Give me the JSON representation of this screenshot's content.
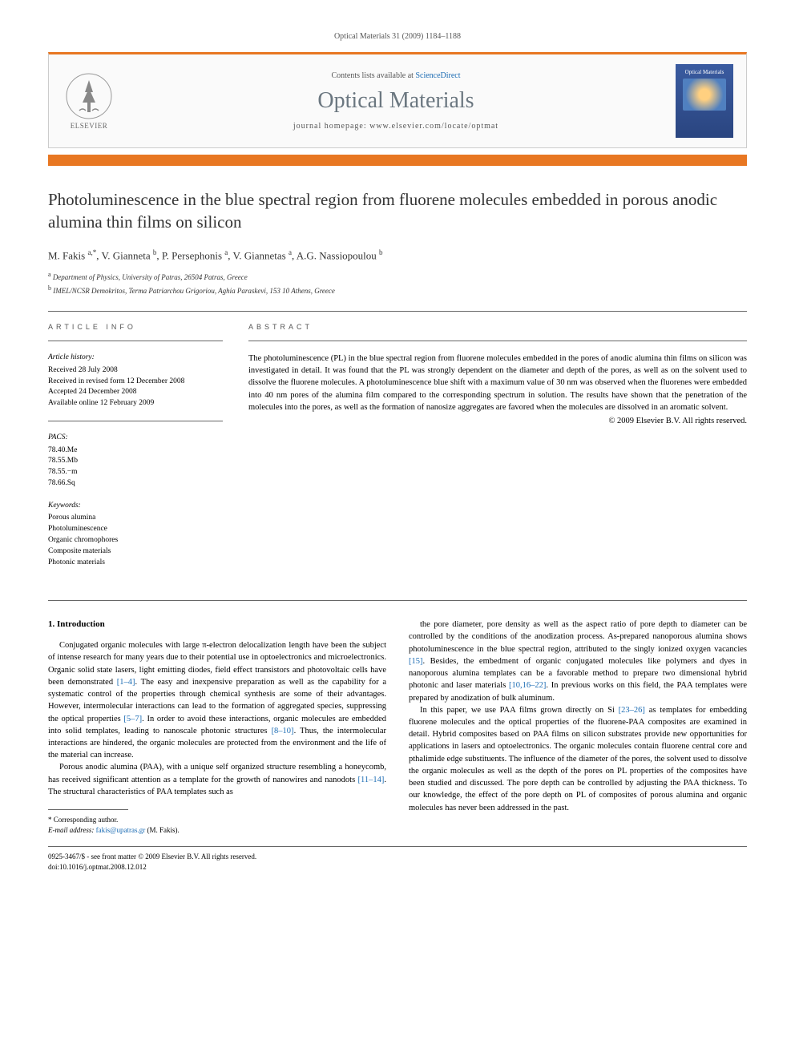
{
  "journal_ref": "Optical Materials 31 (2009) 1184–1188",
  "header": {
    "contents_prefix": "Contents lists available at ",
    "contents_link": "ScienceDirect",
    "journal_title": "Optical Materials",
    "homepage_prefix": "journal homepage: ",
    "homepage_url": "www.elsevier.com/locate/optmat",
    "elsevier_name": "ELSEVIER",
    "cover_title": "Optical Materials"
  },
  "title": "Photoluminescence in the blue spectral region from fluorene molecules embedded in porous anodic alumina thin films on silicon",
  "authors_html": "M. Fakis <sup>a,*</sup>, V. Gianneta <sup>b</sup>, P. Persephonis <sup>a</sup>, V. Giannetas <sup>a</sup>, A.G. Nassiopoulou <sup>b</sup>",
  "affiliations": [
    {
      "sup": "a",
      "text": "Department of Physics, University of Patras, 26504 Patras, Greece"
    },
    {
      "sup": "b",
      "text": "IMEL/NCSR Demokritos, Terma Patriarchou Grigoriou, Aghia Paraskevi, 153 10 Athens, Greece"
    }
  ],
  "article_info": {
    "head": "ARTICLE INFO",
    "history_label": "Article history:",
    "history": [
      "Received 28 July 2008",
      "Received in revised form 12 December 2008",
      "Accepted 24 December 2008",
      "Available online 12 February 2009"
    ],
    "pacs_label": "PACS:",
    "pacs": [
      "78.40.Me",
      "78.55.Mb",
      "78.55.−m",
      "78.66.Sq"
    ],
    "keywords_label": "Keywords:",
    "keywords": [
      "Porous alumina",
      "Photoluminescence",
      "Organic chromophores",
      "Composite materials",
      "Photonic materials"
    ]
  },
  "abstract": {
    "head": "ABSTRACT",
    "text": "The photoluminescence (PL) in the blue spectral region from fluorene molecules embedded in the pores of anodic alumina thin films on silicon was investigated in detail. It was found that the PL was strongly dependent on the diameter and depth of the pores, as well as on the solvent used to dissolve the fluorene molecules. A photoluminescence blue shift with a maximum value of 30 nm was observed when the fluorenes were embedded into 40 nm pores of the alumina film compared to the corresponding spectrum in solution. The results have shown that the penetration of the molecules into the pores, as well as the formation of nanosize aggregates are favored when the molecules are dissolved in an aromatic solvent.",
    "copyright": "© 2009 Elsevier B.V. All rights reserved."
  },
  "body": {
    "section_heading": "1. Introduction",
    "col1": [
      "Conjugated organic molecules with large π-electron delocalization length have been the subject of intense research for many years due to their potential use in optoelectronics and microelectronics. Organic solid state lasers, light emitting diodes, field effect transistors and photovoltaic cells have been demonstrated <span class=\"cite\">[1–4]</span>. The easy and inexpensive preparation as well as the capability for a systematic control of the properties through chemical synthesis are some of their advantages. However, intermolecular interactions can lead to the formation of aggregated species, suppressing the optical properties <span class=\"cite\">[5–7]</span>. In order to avoid these interactions, organic molecules are embedded into solid templates, leading to nanoscale photonic structures <span class=\"cite\">[8–10]</span>. Thus, the intermolecular interactions are hindered, the organic molecules are protected from the environment and the life of the material can increase.",
      "Porous anodic alumina (PAA), with a unique self organized structure resembling a honeycomb, has received significant attention as a template for the growth of nanowires and nanodots <span class=\"cite\">[11–14]</span>. The structural characteristics of PAA templates such as"
    ],
    "col2": [
      "the pore diameter, pore density as well as the aspect ratio of pore depth to diameter can be controlled by the conditions of the anodization process. As-prepared nanoporous alumina shows photoluminescence in the blue spectral region, attributed to the singly ionized oxygen vacancies <span class=\"cite\">[15]</span>. Besides, the embedment of organic conjugated molecules like polymers and dyes in nanoporous alumina templates can be a favorable method to prepare two dimensional hybrid photonic and laser materials <span class=\"cite\">[10,16–22]</span>. In previous works on this field, the PAA templates were prepared by anodization of bulk aluminum.",
      "In this paper, we use PAA films grown directly on Si <span class=\"cite\">[23–26]</span> as templates for embedding fluorene molecules and the optical properties of the fluorene-PAA composites are examined in detail. Hybrid composites based on PAA films on silicon substrates provide new opportunities for applications in lasers and optoelectronics. The organic molecules contain fluorene central core and pthalimide edge substituents. The influence of the diameter of the pores, the solvent used to dissolve the organic molecules as well as the depth of the pores on PL properties of the composites have been studied and discussed. The pore depth can be controlled by adjusting the PAA thickness. To our knowledge, the effect of the pore depth on PL of composites of porous alumina and organic molecules has never been addressed in the past."
    ]
  },
  "footnote": {
    "corr_label": "* Corresponding author.",
    "email_label": "E-mail address:",
    "email": "fakis@upatras.gr",
    "email_name": "(M. Fakis)."
  },
  "doi": {
    "line1": "0925-3467/$ - see front matter © 2009 Elsevier B.V. All rights reserved.",
    "line2": "doi:10.1016/j.optmat.2008.12.012"
  }
}
